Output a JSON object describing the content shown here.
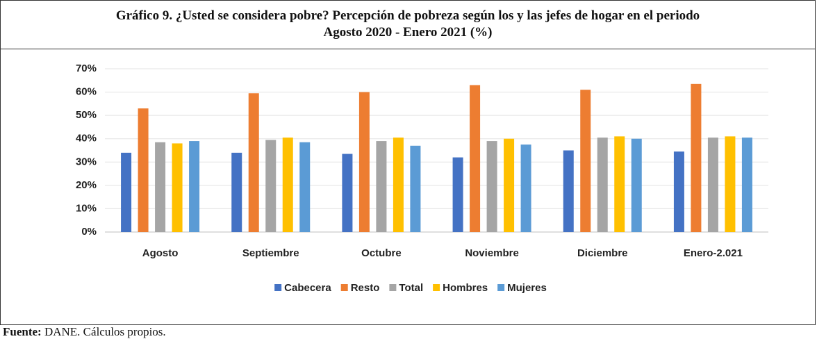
{
  "chart_data": {
    "type": "bar",
    "title": "Gráfico 9. ¿Usted se considera pobre? Percepción de pobreza según los y las jefes de hogar en el periodo Agosto 2020 - Enero 2021 (%)",
    "categories": [
      "Agosto",
      "Septiembre",
      "Octubre",
      "Noviembre",
      "Diciembre",
      "Enero-2.021"
    ],
    "series": [
      {
        "name": "Cabecera",
        "color": "#4472c4",
        "values": [
          34,
          34,
          33.5,
          32,
          35,
          34.5
        ]
      },
      {
        "name": "Resto",
        "color": "#ed7d31",
        "values": [
          53,
          59.5,
          60,
          63,
          61,
          63.5
        ]
      },
      {
        "name": "Total",
        "color": "#a5a5a5",
        "values": [
          38.5,
          39.5,
          39,
          39,
          40.5,
          40.5
        ]
      },
      {
        "name": "Hombres",
        "color": "#ffc000",
        "values": [
          38,
          40.5,
          40.5,
          40,
          41,
          41
        ]
      },
      {
        "name": "Mujeres",
        "color": "#5b9bd5",
        "values": [
          39,
          38.5,
          37,
          37.5,
          40,
          40.5
        ]
      }
    ],
    "ylim": [
      0,
      70
    ],
    "yticks": [
      {
        "value": 0,
        "label": "0%"
      },
      {
        "value": 10,
        "label": "10%"
      },
      {
        "value": 20,
        "label": "20%"
      },
      {
        "value": 30,
        "label": "30%"
      },
      {
        "value": 40,
        "label": "40%"
      },
      {
        "value": 50,
        "label": "50%"
      },
      {
        "value": 60,
        "label": "60%"
      },
      {
        "value": 70,
        "label": "70%"
      }
    ],
    "grid": true,
    "legend": "bottom",
    "source_label": "Fuente:",
    "source_text": "DANE. Cálculos propios."
  }
}
